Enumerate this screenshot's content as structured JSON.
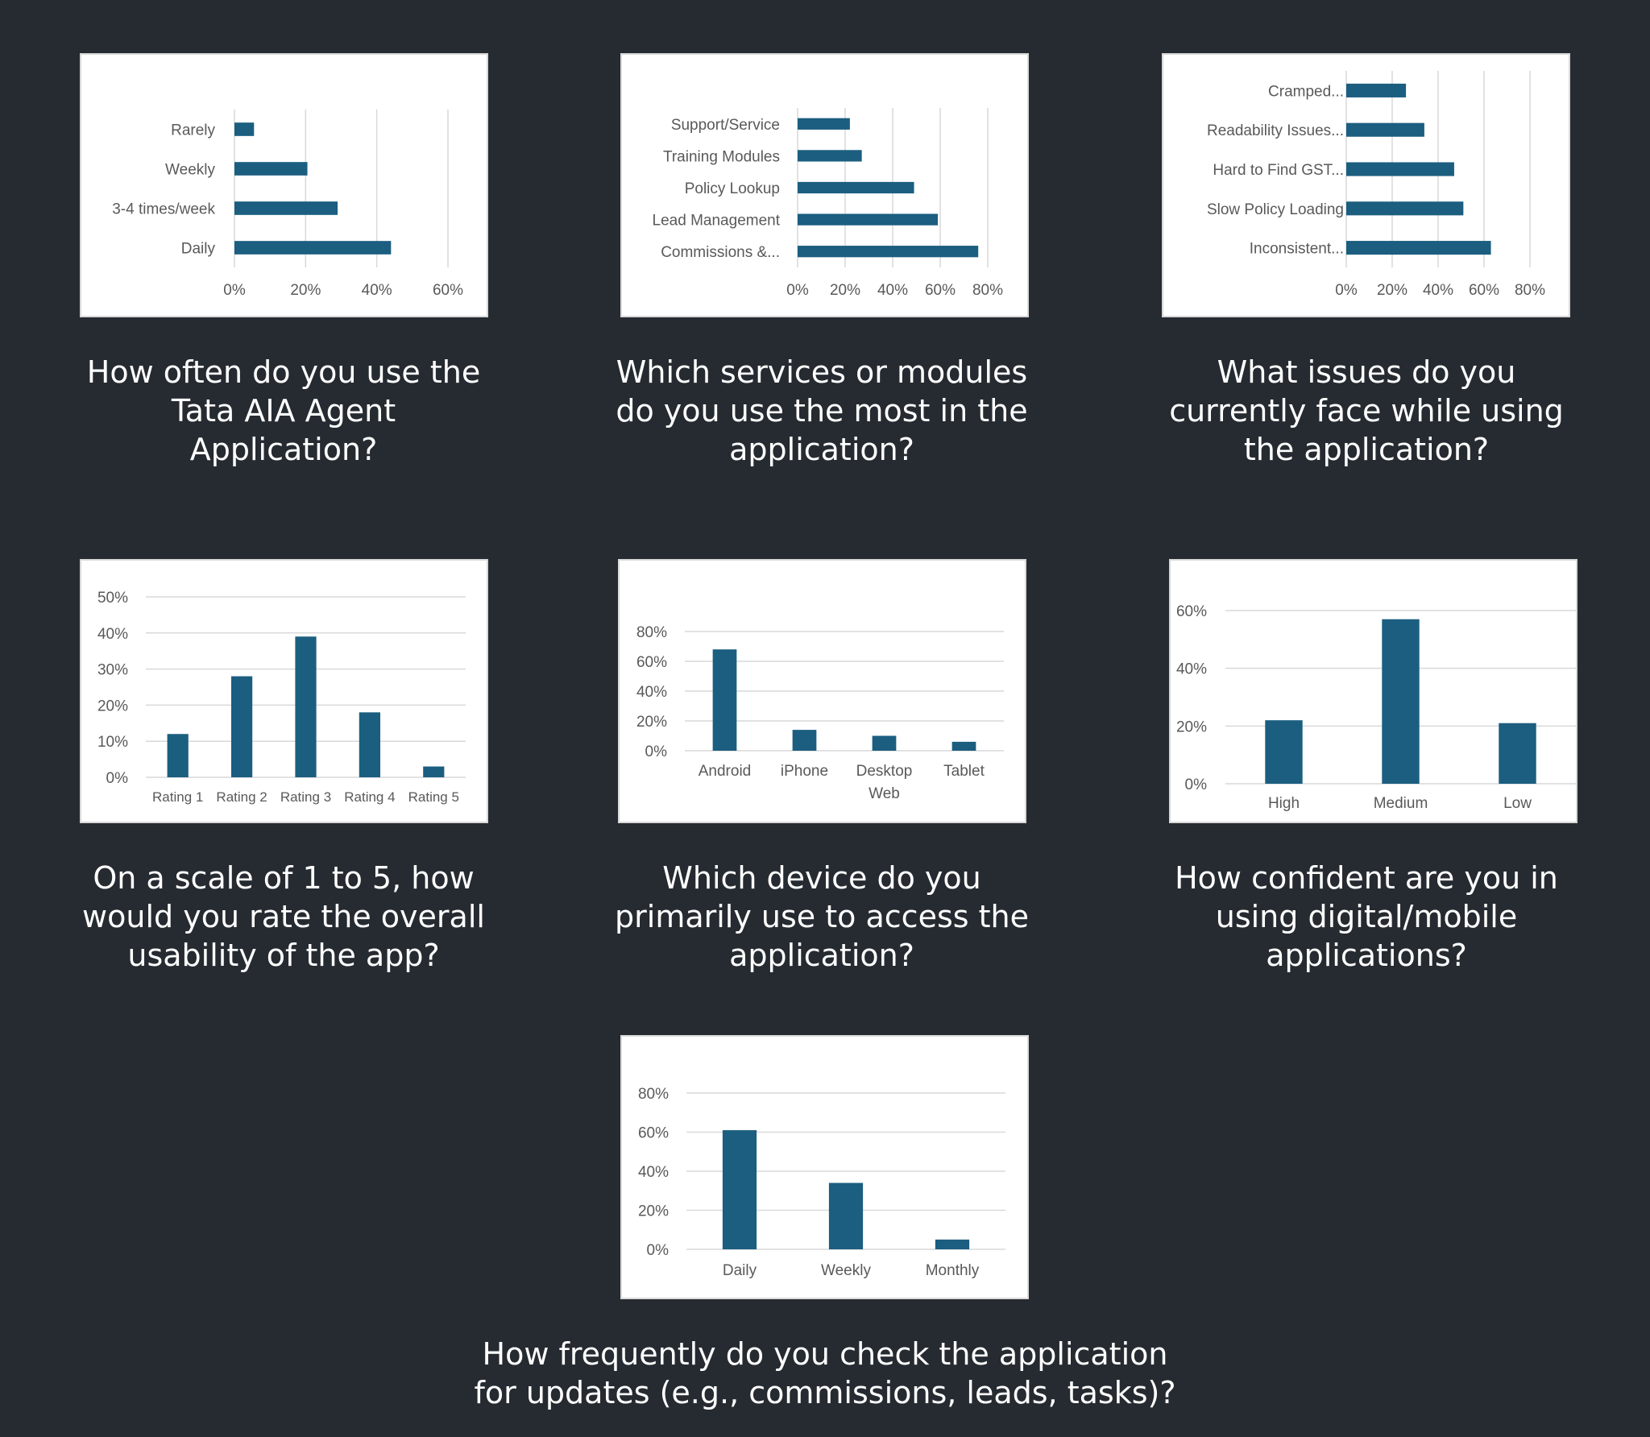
{
  "colors": {
    "background": "#262b31",
    "bar": "#1b5e80",
    "grid": "#d9d9d9",
    "axis_text": "#595959",
    "caption": "#ffffff"
  },
  "captions": [
    {
      "lines": [
        "How often do you use the",
        "Tata AIA Agent",
        "Application?"
      ]
    },
    {
      "lines": [
        "Which services or modules",
        "do you use the most in the",
        "application?"
      ]
    },
    {
      "lines": [
        "What issues do you",
        "currently face while using",
        "the application?"
      ]
    },
    {
      "lines": [
        "On a scale of 1 to 5, how",
        "would you rate the overall",
        "usability of the app?"
      ]
    },
    {
      "lines": [
        "Which device do you",
        "primarily use to access the",
        "application?"
      ]
    },
    {
      "lines": [
        "How confident are you in",
        "using digital/mobile",
        "applications?"
      ]
    },
    {
      "lines": [
        "How frequently do you check the application",
        "for updates (e.g., commissions, leads, tasks)?"
      ]
    }
  ],
  "chart_data": [
    {
      "type": "bar",
      "orientation": "horizontal",
      "categories": [
        "Rarely",
        "Weekly",
        "3-4 times/week",
        "Daily"
      ],
      "values": [
        5.5,
        20.5,
        29,
        44
      ],
      "xlim": [
        0,
        60
      ],
      "ticks": [
        "0%",
        "20%",
        "40%",
        "60%"
      ],
      "tick_values": [
        0,
        20,
        40,
        60
      ],
      "grid": true,
      "legend": "none"
    },
    {
      "type": "bar",
      "orientation": "horizontal",
      "categories": [
        "Support/Service",
        "Training Modules",
        "Policy Lookup",
        "Lead Management",
        "Commissions &..."
      ],
      "values": [
        22,
        27,
        49,
        59,
        76
      ],
      "xlim": [
        0,
        80
      ],
      "ticks": [
        "0%",
        "20%",
        "40%",
        "60%",
        "80%"
      ],
      "tick_values": [
        0,
        20,
        40,
        60,
        80
      ],
      "grid": true,
      "legend": "none"
    },
    {
      "type": "bar",
      "orientation": "horizontal",
      "categories": [
        "Cramped...",
        "Readability Issues...",
        "Hard to Find GST...",
        "Slow Policy Loading",
        "Inconsistent..."
      ],
      "values": [
        26,
        34,
        47,
        51,
        63
      ],
      "xlim": [
        0,
        80
      ],
      "ticks": [
        "0%",
        "20%",
        "40%",
        "60%",
        "80%"
      ],
      "tick_values": [
        0,
        20,
        40,
        60,
        80
      ],
      "grid": true,
      "legend": "none"
    },
    {
      "type": "bar",
      "orientation": "vertical",
      "categories": [
        "Rating 1",
        "Rating 2",
        "Rating 3",
        "Rating 4",
        "Rating 5"
      ],
      "values": [
        12,
        28,
        39,
        18,
        3
      ],
      "ylim": [
        0,
        50
      ],
      "ticks": [
        "0%",
        "10%",
        "20%",
        "30%",
        "40%",
        "50%"
      ],
      "tick_values": [
        0,
        10,
        20,
        30,
        40,
        50
      ],
      "grid": true,
      "legend": "none"
    },
    {
      "type": "bar",
      "orientation": "vertical",
      "categories": [
        "Android",
        "iPhone",
        "Desktop Web",
        "Tablet"
      ],
      "values": [
        68,
        14,
        10,
        6
      ],
      "ylim": [
        0,
        80
      ],
      "ticks": [
        "0%",
        "20%",
        "40%",
        "60%",
        "80%"
      ],
      "tick_values": [
        0,
        20,
        40,
        60,
        80
      ],
      "grid": true,
      "legend": "none"
    },
    {
      "type": "bar",
      "orientation": "vertical",
      "categories": [
        "High",
        "Medium",
        "Low"
      ],
      "values": [
        22,
        57,
        21
      ],
      "ylim": [
        0,
        60
      ],
      "ticks": [
        "0%",
        "20%",
        "40%",
        "60%"
      ],
      "tick_values": [
        0,
        20,
        40,
        60
      ],
      "grid": true,
      "legend": "none"
    },
    {
      "type": "bar",
      "orientation": "vertical",
      "categories": [
        "Daily",
        "Weekly",
        "Monthly"
      ],
      "values": [
        61,
        34,
        5
      ],
      "ylim": [
        0,
        80
      ],
      "ticks": [
        "0%",
        "20%",
        "40%",
        "60%",
        "80%"
      ],
      "tick_values": [
        0,
        20,
        40,
        60,
        80
      ],
      "grid": true,
      "legend": "none"
    }
  ]
}
